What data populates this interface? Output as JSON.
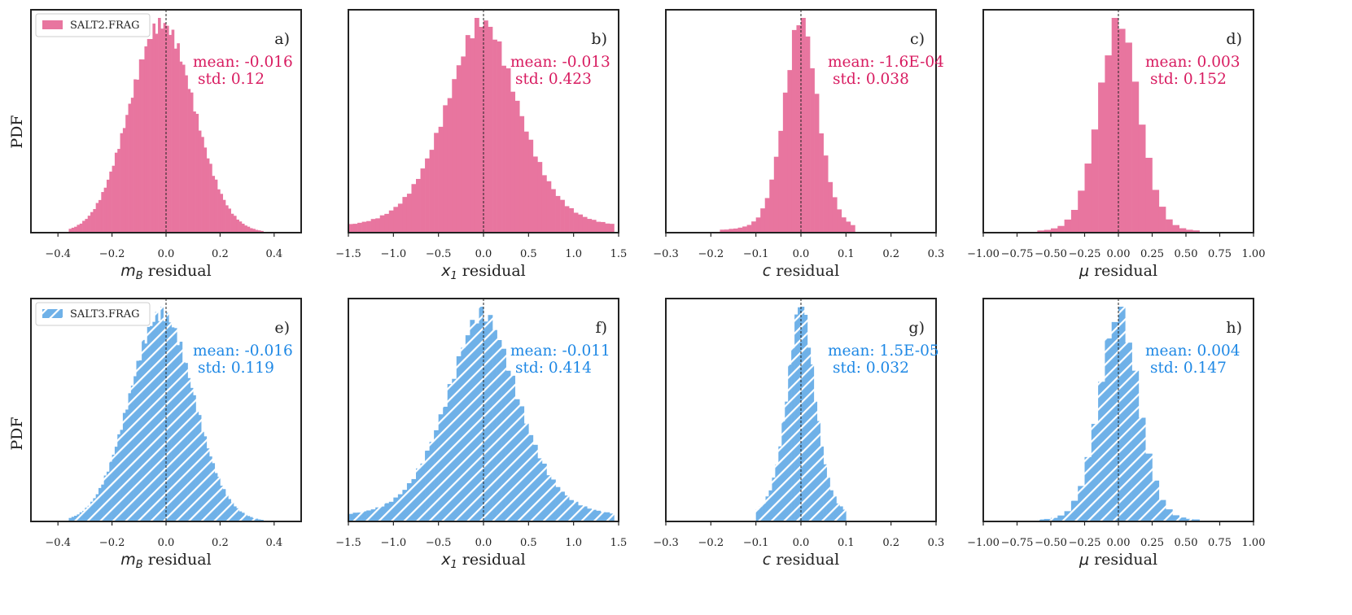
{
  "figure": {
    "ylabel": "PDF",
    "legend_top": "SALT2.FRAG",
    "legend_bottom": "SALT3.FRAG",
    "colors": {
      "salt2": "#e8759f",
      "salt2_text": "#d81b60",
      "salt3": "#6fb1e8",
      "salt3_text": "#1e88e5",
      "axis": "#222222",
      "dashed": "#222222"
    }
  },
  "chart_data": [
    {
      "id": "a",
      "type": "histogram",
      "panel_label": "a)",
      "series": "SALT2.FRAG",
      "xlabel_sym": "m",
      "xlabel_sub": "B",
      "xlabel_rest": " residual",
      "xlim": [
        -0.5,
        0.5
      ],
      "xticks": [
        -0.4,
        -0.2,
        0.0,
        0.2,
        0.4
      ],
      "xtick_labels": [
        "−0.4",
        "−0.2",
        "0.0",
        "0.2",
        "0.4"
      ],
      "mean_text": "mean: -0.016",
      "std_text": "std: 0.12",
      "mean": -0.016,
      "std": 0.12,
      "hist": {
        "lo": -0.36,
        "hi": 0.36,
        "nbins": 72,
        "mu": -0.016,
        "sigma": 0.12,
        "peak": 0.005,
        "kurt": 0.0
      }
    },
    {
      "id": "b",
      "type": "histogram",
      "panel_label": "b)",
      "series": "SALT2.FRAG",
      "xlabel_sym": "x",
      "xlabel_sub": "1",
      "xlabel_rest": " residual",
      "xlim": [
        -1.5,
        1.5
      ],
      "xticks": [
        -1.5,
        -1.0,
        -0.5,
        0.0,
        0.5,
        1.0,
        1.5
      ],
      "xtick_labels": [
        "−1.5",
        "−1.0",
        "−0.5",
        "0.0",
        "0.5",
        "1.0",
        "1.5"
      ],
      "mean_text": "mean: -0.013",
      "std_text": "std: 0.423",
      "mean": -0.013,
      "std": 0.423,
      "hist": {
        "lo": -1.5,
        "hi": 1.45,
        "nbins": 59,
        "mu": -0.013,
        "sigma": 0.423,
        "peak": 0.0,
        "kurt": 1.0
      }
    },
    {
      "id": "c",
      "type": "histogram",
      "panel_label": "c)",
      "series": "SALT2.FRAG",
      "xlabel_sym": "c",
      "xlabel_sub": "",
      "xlabel_rest": " residual",
      "xlim": [
        -0.3,
        0.3
      ],
      "xticks": [
        -0.3,
        -0.2,
        -0.1,
        0.0,
        0.1,
        0.2,
        0.3
      ],
      "xtick_labels": [
        "−0.3",
        "−0.2",
        "−0.1",
        "0.0",
        "0.1",
        "0.2",
        "0.3"
      ],
      "mean_text": "mean: -1.6E-04",
      "std_text": "std: 0.038",
      "mean": -0.00016,
      "std": 0.038,
      "hist": {
        "lo": -0.18,
        "hi": 0.12,
        "nbins": 30,
        "mu": -0.00016,
        "sigma": 0.038,
        "peak": 0.0,
        "kurt": 0.6
      }
    },
    {
      "id": "d",
      "type": "histogram",
      "panel_label": "d)",
      "series": "SALT2.FRAG",
      "xlabel_sym": "μ",
      "xlabel_sub": "",
      "xlabel_rest": " residual",
      "xlim": [
        -1.0,
        1.0
      ],
      "xticks": [
        -1.0,
        -0.75,
        -0.5,
        -0.25,
        0.0,
        0.25,
        0.5,
        0.75,
        1.0
      ],
      "xtick_labels": [
        "−1.00",
        "−0.75",
        "−0.50",
        "−0.25",
        "0.00",
        "0.25",
        "0.50",
        "0.75",
        "1.00"
      ],
      "mean_text": "mean: 0.003",
      "std_text": "std: 0.152",
      "mean": 0.003,
      "std": 0.152,
      "hist": {
        "lo": -0.6,
        "hi": 0.6,
        "nbins": 24,
        "mu": 0.003,
        "sigma": 0.152,
        "peak": 0.0,
        "kurt": 0.3
      }
    },
    {
      "id": "e",
      "type": "histogram",
      "panel_label": "e)",
      "series": "SALT3.FRAG",
      "xlabel_sym": "m",
      "xlabel_sub": "B",
      "xlabel_rest": " residual",
      "xlim": [
        -0.5,
        0.5
      ],
      "xticks": [
        -0.4,
        -0.2,
        0.0,
        0.2,
        0.4
      ],
      "xtick_labels": [
        "−0.4",
        "−0.2",
        "0.0",
        "0.2",
        "0.4"
      ],
      "mean_text": "mean: -0.016",
      "std_text": "std: 0.119",
      "mean": -0.016,
      "std": 0.119,
      "hist": {
        "lo": -0.36,
        "hi": 0.36,
        "nbins": 72,
        "mu": -0.016,
        "sigma": 0.119,
        "peak": 0.005,
        "kurt": 0.0
      }
    },
    {
      "id": "f",
      "type": "histogram",
      "panel_label": "f)",
      "series": "SALT3.FRAG",
      "xlabel_sym": "x",
      "xlabel_sub": "1",
      "xlabel_rest": " residual",
      "xlim": [
        -1.5,
        1.5
      ],
      "xticks": [
        -1.5,
        -1.0,
        -0.5,
        0.0,
        0.5,
        1.0,
        1.5
      ],
      "xtick_labels": [
        "−1.5",
        "−1.0",
        "−0.5",
        "0.0",
        "0.5",
        "1.0",
        "1.5"
      ],
      "mean_text": "mean: -0.011",
      "std_text": "std: 0.414",
      "mean": -0.011,
      "std": 0.414,
      "hist": {
        "lo": -1.5,
        "hi": 1.45,
        "nbins": 59,
        "mu": -0.011,
        "sigma": 0.414,
        "peak": 0.0,
        "kurt": 1.0
      }
    },
    {
      "id": "g",
      "type": "histogram",
      "panel_label": "g)",
      "series": "SALT3.FRAG",
      "xlabel_sym": "c",
      "xlabel_sub": "",
      "xlabel_rest": " residual",
      "xlim": [
        -0.3,
        0.3
      ],
      "xticks": [
        -0.3,
        -0.2,
        -0.1,
        0.0,
        0.1,
        0.2,
        0.3
      ],
      "xtick_labels": [
        "−0.3",
        "−0.2",
        "−0.1",
        "0.0",
        "0.1",
        "0.2",
        "0.3"
      ],
      "mean_text": "mean: 1.5E-05",
      "std_text": "std: 0.032",
      "mean": 1.5e-05,
      "std": 0.032,
      "hist": {
        "lo": -0.1,
        "hi": 0.1,
        "nbins": 28,
        "mu": 1.5e-05,
        "sigma": 0.032,
        "peak": 0.0,
        "kurt": 1.0
      }
    },
    {
      "id": "h",
      "type": "histogram",
      "panel_label": "h)",
      "series": "SALT3.FRAG",
      "xlabel_sym": "μ",
      "xlabel_sub": "",
      "xlabel_rest": " residual",
      "xlim": [
        -1.0,
        1.0
      ],
      "xticks": [
        -1.0,
        -0.75,
        -0.5,
        -0.25,
        0.0,
        0.25,
        0.5,
        0.75,
        1.0
      ],
      "xtick_labels": [
        "−1.00",
        "−0.75",
        "−0.50",
        "−0.25",
        "0.00",
        "0.25",
        "0.50",
        "0.75",
        "1.00"
      ],
      "mean_text": "mean: 0.004",
      "std_text": "std: 0.147",
      "mean": 0.004,
      "std": 0.147,
      "hist": {
        "lo": -0.6,
        "hi": 0.6,
        "nbins": 24,
        "mu": 0.004,
        "sigma": 0.147,
        "peak": 0.0,
        "kurt": 0.3
      }
    }
  ]
}
